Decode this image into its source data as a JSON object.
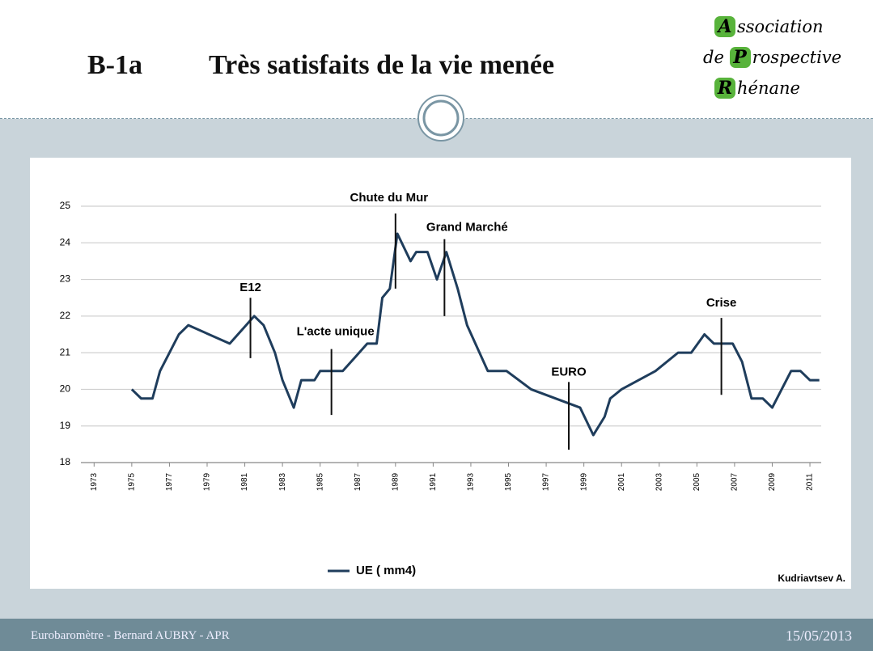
{
  "header": {
    "code": "B-1a",
    "title": "Très satisfaits de la vie menée",
    "logo": [
      {
        "letter": "A",
        "text": "ssociation"
      },
      {
        "prefix": "de",
        "letter": "P",
        "text": "rospective"
      },
      {
        "letter": "R",
        "text": "hénane"
      }
    ]
  },
  "chart_data": {
    "type": "line",
    "series": [
      {
        "name": "UE ( mm4)",
        "color": "#1f3d5c",
        "x": [
          1975.0,
          1975.5,
          1976.1,
          1976.5,
          1977.0,
          1977.5,
          1978.0,
          1980.2,
          1981.5,
          1982.0,
          1982.6,
          1983.0,
          1983.6,
          1984.0,
          1984.7,
          1985.0,
          1986.2,
          1986.9,
          1987.5,
          1988.0,
          1988.3,
          1988.7,
          1989.1,
          1989.8,
          1990.1,
          1990.7,
          1991.2,
          1991.7,
          1992.3,
          1992.8,
          1993.9,
          1994.9,
          1996.2,
          1998.8,
          1999.5,
          2000.1,
          2000.4,
          2001.0,
          2002.8,
          2004.0,
          2004.7,
          2005.4,
          2005.9,
          2006.9,
          2007.4,
          2007.9,
          2008.5,
          2009.0,
          2009.5,
          2010.0,
          2010.5,
          2011.0,
          2011.5
        ],
        "values": [
          20.0,
          19.75,
          19.75,
          20.5,
          21.0,
          21.5,
          21.75,
          21.25,
          22.0,
          21.75,
          21.0,
          20.25,
          19.5,
          20.25,
          20.25,
          20.5,
          20.5,
          20.9,
          21.25,
          21.25,
          22.5,
          22.75,
          24.25,
          23.5,
          23.75,
          23.75,
          23.0,
          23.75,
          22.75,
          21.75,
          20.5,
          20.5,
          20.0,
          19.5,
          18.75,
          19.25,
          19.75,
          20.0,
          20.5,
          21.0,
          21.0,
          21.5,
          21.25,
          21.25,
          20.75,
          19.75,
          19.75,
          19.5,
          20.0,
          20.5,
          20.5,
          20.25,
          20.25
        ]
      }
    ],
    "xlim": [
      1972.3,
      2011.6
    ],
    "xticks": [
      1973,
      1975,
      1977,
      1979,
      1981,
      1983,
      1985,
      1987,
      1989,
      1991,
      1993,
      1995,
      1997,
      1999,
      2001,
      2003,
      2005,
      2007,
      2009,
      2011
    ],
    "ylim": [
      18,
      25
    ],
    "yticks": [
      18,
      19,
      20,
      21,
      22,
      23,
      24,
      25
    ],
    "grid": true,
    "annotations": [
      {
        "text": "E12",
        "x": 1981.3,
        "y": [
          22.5,
          20.85
        ]
      },
      {
        "text": "L'acte unique",
        "x": 1985.6,
        "y": [
          21.1,
          19.3
        ]
      },
      {
        "text": "Chute du Mur",
        "x": 1989.0,
        "y": [
          24.8,
          22.75
        ]
      },
      {
        "text": "Grand Marché",
        "x": 1991.6,
        "y": [
          24.1,
          22.0
        ]
      },
      {
        "text": "EURO",
        "x": 1998.2,
        "y": [
          20.2,
          18.35
        ]
      },
      {
        "text": "Crise",
        "x": 2006.3,
        "y": [
          21.95,
          19.85
        ]
      }
    ],
    "credit": "Kudriavtsev A."
  },
  "footer": {
    "left": "Eurobaromètre  -  Bernard AUBRY  -  APR",
    "right": "15/05/2013"
  }
}
